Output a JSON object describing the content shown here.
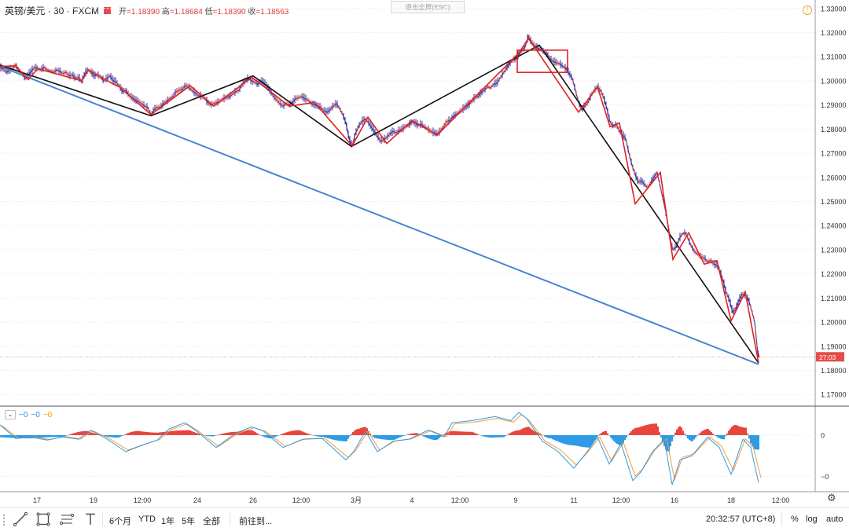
{
  "header": {
    "symbol": "英镑/美元 · 30 · FXCM",
    "open_label": "开",
    "open_value": "1.18390",
    "high_label": "高",
    "high_value": "1.18684",
    "low_label": "低",
    "low_value": "1.18390",
    "close_label": "收",
    "close_value": "1.18563",
    "exit_fullscreen": "退出全屏(ESC)"
  },
  "indicator": {
    "toggle_glyph": "⌄",
    "value_1": "−0",
    "value_2": "−0",
    "value_3": "−0",
    "axis_ticks": [
      {
        "value": 0,
        "label": "0"
      },
      {
        "value": -0.01,
        "label": "−0"
      }
    ],
    "ylim": [
      -0.0135,
      0.0055
    ]
  },
  "price_tag": "27:03",
  "chart_data": {
    "type": "candlestick",
    "ylim": [
      1.1655,
      1.3335
    ],
    "y_ticks": [
      "1.33000",
      "1.32000",
      "1.31000",
      "1.30000",
      "1.29000",
      "1.28000",
      "1.27000",
      "1.26000",
      "1.25000",
      "1.24000",
      "1.23000",
      "1.22000",
      "1.21000",
      "1.20000",
      "1.19000",
      "1.18000",
      "1.17000"
    ],
    "x_ticks": [
      "17",
      "19",
      "12:00",
      "24",
      "26",
      "12:00",
      "3月",
      "4",
      "12:00",
      "9",
      "11",
      "12:00",
      "16",
      "18",
      "12:00"
    ],
    "price_path": [
      [
        0,
        1.3055
      ],
      [
        4,
        1.305
      ],
      [
        8,
        1.3035
      ],
      [
        12,
        1.3045
      ],
      [
        16,
        1.305
      ],
      [
        20,
        1.3065
      ],
      [
        24,
        1.304
      ],
      [
        28,
        1.303
      ],
      [
        32,
        1.301
      ],
      [
        36,
        1.3025
      ],
      [
        40,
        1.304
      ],
      [
        44,
        1.3055
      ],
      [
        48,
        1.305
      ],
      [
        52,
        1.3045
      ],
      [
        56,
        1.3055
      ],
      [
        60,
        1.3045
      ],
      [
        64,
        1.304
      ],
      [
        68,
        1.3035
      ],
      [
        72,
        1.3045
      ],
      [
        76,
        1.304
      ],
      [
        80,
        1.303
      ],
      [
        84,
        1.3035
      ],
      [
        88,
        1.302
      ],
      [
        92,
        1.3025
      ],
      [
        96,
        1.301
      ],
      [
        100,
        1.3015
      ],
      [
        104,
        1.2995
      ],
      [
        108,
        1.303
      ],
      [
        112,
        1.3045
      ],
      [
        116,
        1.3035
      ],
      [
        120,
        1.302
      ],
      [
        124,
        1.3025
      ],
      [
        128,
        1.3015
      ],
      [
        132,
        1.3
      ],
      [
        136,
        1.301
      ],
      [
        140,
        1.302
      ],
      [
        144,
        1.3
      ],
      [
        148,
        1.2995
      ],
      [
        152,
        1.2975
      ],
      [
        156,
        1.2955
      ],
      [
        160,
        1.296
      ],
      [
        164,
        1.294
      ],
      [
        168,
        1.293
      ],
      [
        172,
        1.292
      ],
      [
        176,
        1.2915
      ],
      [
        180,
        1.2905
      ],
      [
        184,
        1.2895
      ],
      [
        188,
        1.289
      ],
      [
        192,
        1.286
      ],
      [
        196,
        1.288
      ],
      [
        200,
        1.289
      ],
      [
        204,
        1.289
      ],
      [
        208,
        1.2905
      ],
      [
        212,
        1.2915
      ],
      [
        216,
        1.2925
      ],
      [
        220,
        1.2935
      ],
      [
        224,
        1.2955
      ],
      [
        228,
        1.296
      ],
      [
        232,
        1.2965
      ],
      [
        236,
        1.298
      ],
      [
        240,
        1.2975
      ],
      [
        244,
        1.296
      ],
      [
        248,
        1.295
      ],
      [
        252,
        1.294
      ],
      [
        256,
        1.2935
      ],
      [
        260,
        1.293
      ],
      [
        264,
        1.291
      ],
      [
        268,
        1.29
      ],
      [
        272,
        1.2905
      ],
      [
        276,
        1.291
      ],
      [
        280,
        1.2915
      ],
      [
        284,
        1.2925
      ],
      [
        288,
        1.293
      ],
      [
        292,
        1.2935
      ],
      [
        296,
        1.2945
      ],
      [
        300,
        1.2955
      ],
      [
        304,
        1.296
      ],
      [
        308,
        1.2985
      ],
      [
        312,
        1.3
      ],
      [
        316,
        1.301
      ],
      [
        320,
        1.3
      ],
      [
        324,
        1.2995
      ],
      [
        328,
        1.2985
      ],
      [
        332,
        1.3
      ],
      [
        336,
        1.299
      ],
      [
        340,
        1.2975
      ],
      [
        344,
        1.2955
      ],
      [
        348,
        1.2935
      ],
      [
        352,
        1.292
      ],
      [
        356,
        1.2905
      ],
      [
        360,
        1.2895
      ],
      [
        364,
        1.2905
      ],
      [
        368,
        1.29
      ],
      [
        372,
        1.291
      ],
      [
        376,
        1.2925
      ],
      [
        380,
        1.293
      ],
      [
        384,
        1.2935
      ],
      [
        388,
        1.2925
      ],
      [
        392,
        1.292
      ],
      [
        396,
        1.2905
      ],
      [
        400,
        1.29
      ],
      [
        404,
        1.2895
      ],
      [
        408,
        1.289
      ],
      [
        412,
        1.2875
      ],
      [
        416,
        1.287
      ],
      [
        420,
        1.288
      ],
      [
        424,
        1.2895
      ],
      [
        428,
        1.2905
      ],
      [
        432,
        1.2885
      ],
      [
        436,
        1.286
      ],
      [
        440,
        1.2825
      ],
      [
        444,
        1.276
      ],
      [
        448,
        1.273
      ],
      [
        452,
        1.278
      ],
      [
        456,
        1.281
      ],
      [
        460,
        1.283
      ],
      [
        464,
        1.284
      ],
      [
        468,
        1.283
      ],
      [
        472,
        1.281
      ],
      [
        476,
        1.279
      ],
      [
        480,
        1.277
      ],
      [
        484,
        1.275
      ],
      [
        488,
        1.2755
      ],
      [
        492,
        1.2765
      ],
      [
        496,
        1.278
      ],
      [
        500,
        1.279
      ],
      [
        504,
        1.2785
      ],
      [
        508,
        1.2795
      ],
      [
        512,
        1.28
      ],
      [
        516,
        1.281
      ],
      [
        520,
        1.2815
      ],
      [
        524,
        1.283
      ],
      [
        528,
        1.2825
      ],
      [
        532,
        1.2815
      ],
      [
        536,
        1.282
      ],
      [
        540,
        1.281
      ],
      [
        544,
        1.28
      ],
      [
        548,
        1.279
      ],
      [
        552,
        1.2785
      ],
      [
        556,
        1.278
      ],
      [
        560,
        1.279
      ],
      [
        564,
        1.281
      ],
      [
        568,
        1.283
      ],
      [
        572,
        1.2835
      ],
      [
        576,
        1.285
      ],
      [
        580,
        1.286
      ],
      [
        584,
        1.287
      ],
      [
        588,
        1.288
      ],
      [
        592,
        1.289
      ],
      [
        596,
        1.29
      ],
      [
        600,
        1.2915
      ],
      [
        604,
        1.293
      ],
      [
        608,
        1.2935
      ],
      [
        612,
        1.295
      ],
      [
        616,
        1.296
      ],
      [
        620,
        1.2975
      ],
      [
        624,
        1.297
      ],
      [
        628,
        1.2985
      ],
      [
        632,
        1.299
      ],
      [
        636,
        1.301
      ],
      [
        640,
        1.303
      ],
      [
        644,
        1.305
      ],
      [
        648,
        1.307
      ],
      [
        652,
        1.3085
      ],
      [
        656,
        1.309
      ],
      [
        660,
        1.311
      ],
      [
        664,
        1.3125
      ],
      [
        668,
        1.314
      ],
      [
        672,
        1.3185
      ],
      [
        676,
        1.316
      ],
      [
        680,
        1.3145
      ],
      [
        684,
        1.3135
      ],
      [
        688,
        1.313
      ],
      [
        692,
        1.312
      ],
      [
        696,
        1.311
      ],
      [
        700,
        1.309
      ],
      [
        704,
        1.308
      ],
      [
        708,
        1.3075
      ],
      [
        712,
        1.307
      ],
      [
        716,
        1.306
      ],
      [
        720,
        1.305
      ],
      [
        724,
        1.303
      ],
      [
        728,
        1.301
      ],
      [
        732,
        1.296
      ],
      [
        736,
        1.291
      ],
      [
        740,
        1.288
      ],
      [
        744,
        1.2895
      ],
      [
        748,
        1.291
      ],
      [
        752,
        1.294
      ],
      [
        756,
        1.296
      ],
      [
        760,
        1.2975
      ],
      [
        764,
        1.296
      ],
      [
        768,
        1.293
      ],
      [
        772,
        1.2885
      ],
      [
        776,
        1.283
      ],
      [
        780,
        1.281
      ],
      [
        784,
        1.282
      ],
      [
        788,
        1.279
      ],
      [
        792,
        1.2775
      ],
      [
        796,
        1.276
      ],
      [
        800,
        1.27
      ],
      [
        804,
        1.265
      ],
      [
        808,
        1.261
      ],
      [
        812,
        1.258
      ],
      [
        816,
        1.2585
      ],
      [
        820,
        1.257
      ],
      [
        824,
        1.2555
      ],
      [
        828,
        1.258
      ],
      [
        832,
        1.26
      ],
      [
        836,
        1.262
      ],
      [
        840,
        1.256
      ],
      [
        844,
        1.25
      ],
      [
        848,
        1.244
      ],
      [
        852,
        1.235
      ],
      [
        856,
        1.23
      ],
      [
        860,
        1.231
      ],
      [
        864,
        1.2345
      ],
      [
        868,
        1.2365
      ],
      [
        872,
        1.237
      ],
      [
        876,
        1.234
      ],
      [
        880,
        1.231
      ],
      [
        884,
        1.229
      ],
      [
        888,
        1.228
      ],
      [
        892,
        1.227
      ],
      [
        896,
        1.2265
      ],
      [
        900,
        1.225
      ],
      [
        904,
        1.2255
      ],
      [
        908,
        1.224
      ],
      [
        912,
        1.2235
      ],
      [
        916,
        1.221
      ],
      [
        920,
        1.217
      ],
      [
        924,
        1.212
      ],
      [
        928,
        1.209
      ],
      [
        932,
        1.204
      ],
      [
        936,
        1.2055
      ],
      [
        940,
        1.209
      ],
      [
        944,
        1.2115
      ],
      [
        948,
        1.211
      ],
      [
        952,
        1.2095
      ],
      [
        956,
        1.205
      ],
      [
        960,
        1.2
      ],
      [
        964,
        1.187
      ],
      [
        966,
        1.1856
      ]
    ],
    "zigzag_black": [
      [
        0,
        1.3065
      ],
      [
        192,
        1.2855
      ],
      [
        322,
        1.302
      ],
      [
        447,
        1.2728
      ],
      [
        686,
        1.3148
      ],
      [
        965,
        1.183
      ]
    ],
    "zigzag_red": [
      [
        0,
        1.306
      ],
      [
        20,
        1.3062
      ],
      [
        36,
        1.3005
      ],
      [
        48,
        1.305
      ],
      [
        104,
        1.3
      ],
      [
        112,
        1.3045
      ],
      [
        145,
        1.2985
      ],
      [
        152,
        1.2975
      ],
      [
        192,
        1.286
      ],
      [
        242,
        1.298
      ],
      [
        272,
        1.2895
      ],
      [
        320,
        1.3015
      ],
      [
        368,
        1.2895
      ],
      [
        400,
        1.291
      ],
      [
        448,
        1.273
      ],
      [
        468,
        1.285
      ],
      [
        492,
        1.274
      ],
      [
        524,
        1.2835
      ],
      [
        556,
        1.2775
      ],
      [
        660,
        1.3115
      ],
      [
        672,
        1.3175
      ],
      [
        680,
        1.314
      ],
      [
        736,
        1.287
      ],
      [
        760,
        1.2975
      ],
      [
        776,
        1.281
      ],
      [
        788,
        1.2825
      ],
      [
        808,
        1.249
      ],
      [
        840,
        1.262
      ],
      [
        856,
        1.226
      ],
      [
        876,
        1.237
      ],
      [
        896,
        1.224
      ],
      [
        912,
        1.2255
      ],
      [
        930,
        1.2005
      ],
      [
        948,
        1.2125
      ],
      [
        965,
        1.183
      ]
    ],
    "trendline_blue": [
      [
        0,
        1.306
      ],
      [
        965,
        1.1825
      ]
    ],
    "box": {
      "x0": 658,
      "x1": 722,
      "y0": 1.3127,
      "y1": 1.3035
    },
    "last_price": 1.1856,
    "histogram": [
      [
        0,
        -0.0005
      ],
      [
        40,
        -0.0008
      ],
      [
        80,
        -0.0004
      ],
      [
        110,
        0.001
      ],
      [
        150,
        -0.0006
      ],
      [
        175,
        0.001
      ],
      [
        200,
        0.0006
      ],
      [
        240,
        0.0012
      ],
      [
        270,
        -0.0003
      ],
      [
        300,
        0.0008
      ],
      [
        320,
        0.0012
      ],
      [
        345,
        -0.0008
      ],
      [
        380,
        0.0012
      ],
      [
        410,
        -0.0004
      ],
      [
        440,
        -0.0015
      ],
      [
        455,
        0.0015
      ],
      [
        465,
        0.002
      ],
      [
        478,
        -0.0008
      ],
      [
        500,
        -0.0012
      ],
      [
        530,
        0.0005
      ],
      [
        555,
        -0.0012
      ],
      [
        575,
        0.001
      ],
      [
        600,
        0.0008
      ],
      [
        625,
        -0.0006
      ],
      [
        640,
        -0.0005
      ],
      [
        660,
        0.0012
      ],
      [
        672,
        0.002
      ],
      [
        685,
        0.0006
      ],
      [
        700,
        -0.0008
      ],
      [
        730,
        -0.0025
      ],
      [
        750,
        -0.003
      ],
      [
        770,
        0.001
      ],
      [
        790,
        -0.0025
      ],
      [
        810,
        0.0018
      ],
      [
        835,
        0.0028
      ],
      [
        850,
        -0.004
      ],
      [
        865,
        0.0022
      ],
      [
        880,
        -0.0015
      ],
      [
        900,
        0.0015
      ],
      [
        920,
        -0.001
      ],
      [
        935,
        0.0025
      ],
      [
        948,
        0.0018
      ],
      [
        960,
        -0.0035
      ]
    ],
    "osc_line": [
      [
        0,
        0.0025
      ],
      [
        20,
        -0.0008
      ],
      [
        40,
        -0.0005
      ],
      [
        60,
        -0.0012
      ],
      [
        80,
        -0.0004
      ],
      [
        100,
        -0.001
      ],
      [
        115,
        0.0012
      ],
      [
        135,
        -0.0008
      ],
      [
        160,
        -0.004
      ],
      [
        180,
        -0.0025
      ],
      [
        200,
        -0.0012
      ],
      [
        215,
        0.0015
      ],
      [
        235,
        0.003
      ],
      [
        250,
        0.001
      ],
      [
        275,
        -0.003
      ],
      [
        300,
        0.0005
      ],
      [
        320,
        0.002
      ],
      [
        335,
        0.001
      ],
      [
        360,
        -0.003
      ],
      [
        385,
        -0.001
      ],
      [
        410,
        -0.0008
      ],
      [
        440,
        -0.006
      ],
      [
        450,
        -0.004
      ],
      [
        465,
        0.001
      ],
      [
        480,
        -0.004
      ],
      [
        500,
        -0.0015
      ],
      [
        520,
        -0.001
      ],
      [
        545,
        0.0012
      ],
      [
        565,
        -0.0004
      ],
      [
        575,
        0.003
      ],
      [
        600,
        0.0035
      ],
      [
        630,
        0.0045
      ],
      [
        650,
        0.0035
      ],
      [
        660,
        0.0055
      ],
      [
        670,
        0.004
      ],
      [
        690,
        -0.0015
      ],
      [
        710,
        -0.004
      ],
      [
        730,
        -0.008
      ],
      [
        745,
        -0.0045
      ],
      [
        760,
        -0.0005
      ],
      [
        775,
        -0.007
      ],
      [
        790,
        -0.002
      ],
      [
        805,
        -0.011
      ],
      [
        815,
        -0.009
      ],
      [
        830,
        -0.004
      ],
      [
        845,
        -0.001
      ],
      [
        855,
        -0.012
      ],
      [
        865,
        -0.006
      ],
      [
        880,
        -0.005
      ],
      [
        900,
        -0.0005
      ],
      [
        915,
        -0.003
      ],
      [
        930,
        -0.0095
      ],
      [
        945,
        -0.001
      ],
      [
        955,
        -0.003
      ],
      [
        965,
        -0.0115
      ]
    ]
  }
}
